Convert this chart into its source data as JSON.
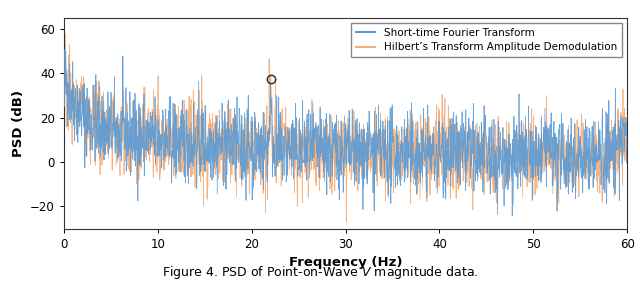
{
  "caption": "Figure 4. PSD of Point-on-Wave $V$ magnitude data.",
  "xlabel": "Frequency (Hz)",
  "ylabel": "PSD (dB)",
  "xlim": [
    0,
    60
  ],
  "ylim": [
    -30,
    65
  ],
  "yticks": [
    -20,
    0,
    20,
    40,
    60
  ],
  "xticks": [
    0,
    10,
    20,
    30,
    40,
    50,
    60
  ],
  "legend_stft": "Short-time Fourier Transform",
  "legend_hilbert": "Hilbert’s Transform Amplitude Demodulation",
  "color_stft": "#5b9bd5",
  "color_hilbert": "#f4af7a",
  "spike_freq": 22.0,
  "spike_psd": 35.5,
  "background_color": "#ffffff",
  "figsize": [
    6.4,
    2.93
  ],
  "dpi": 100,
  "seed": 42,
  "N_points": 2000
}
